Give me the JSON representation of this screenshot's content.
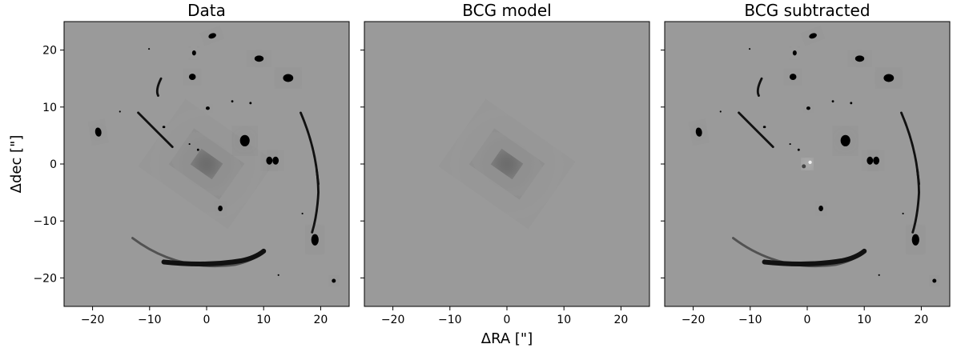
{
  "figure": {
    "ylabel": "Δdec [\"]",
    "xlabel": "ΔRA [\"]",
    "panels": [
      {
        "title": "Data",
        "content": "data"
      },
      {
        "title": "BCG model",
        "content": "model"
      },
      {
        "title": "BCG subtracted",
        "content": "subtracted"
      }
    ],
    "x_ticks": [
      "−20",
      "−10",
      "0",
      "10",
      "20"
    ],
    "y_ticks": [
      "20",
      "10",
      "0",
      "−10",
      "−20"
    ],
    "x_range_arcsec": [
      -25,
      25
    ],
    "y_range_arcsec": [
      -25,
      25
    ],
    "colormap": "grey",
    "background_color": "#9a9a9a"
  }
}
